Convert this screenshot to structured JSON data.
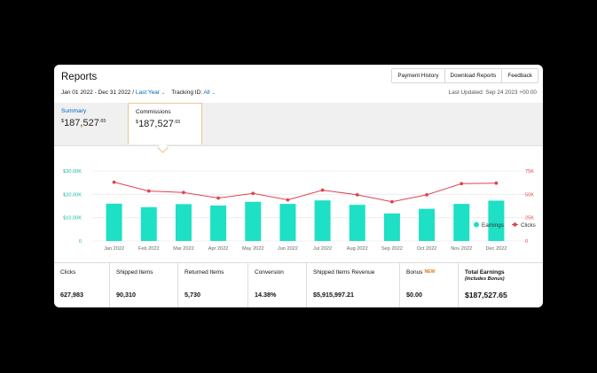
{
  "header": {
    "title": "Reports",
    "buttons": [
      "Payment History",
      "Download Reports",
      "Feedback"
    ]
  },
  "filters": {
    "date_range": "Jan 01 2022 - Dec 31 2022",
    "separator": "/",
    "period": "Last Year",
    "tracking_label": "Tracking ID:",
    "tracking_value": "All",
    "last_updated": "Last Updated: Sep 24 2023 +00:00"
  },
  "tabs": {
    "summary": {
      "label": "Summary",
      "currency": "$",
      "amount": "187,527",
      "cents": ".65"
    },
    "commissions": {
      "label": "Commissions",
      "currency": "$",
      "amount": "187,527",
      "cents": ".65"
    }
  },
  "chart_data": {
    "type": "bar",
    "categories": [
      "Jan 2022",
      "Feb 2022",
      "Mar 2022",
      "Apr 2022",
      "May 2022",
      "Jun 2022",
      "Jul 2022",
      "Aug 2022",
      "Sep 2022",
      "Oct 2022",
      "Nov 2022",
      "Dec 2022"
    ],
    "series": [
      {
        "name": "Earnings",
        "type": "bar",
        "axis": "left",
        "color": "#1de0c5",
        "values": [
          16000,
          14500,
          15800,
          15200,
          16800,
          15900,
          17400,
          15500,
          11800,
          13800,
          15900,
          17300
        ]
      },
      {
        "name": "Clicks",
        "type": "line",
        "axis": "right",
        "color": "#e0434f",
        "values": [
          63000,
          53500,
          52000,
          46000,
          51000,
          44000,
          54500,
          49500,
          42000,
          49500,
          61500,
          62000
        ]
      }
    ],
    "y_left": {
      "ticks": [
        "$30.00K",
        "$20.00K",
        "$10.00K",
        "0"
      ],
      "range": [
        0,
        30000
      ]
    },
    "y_right": {
      "ticks": [
        "75K",
        "50K",
        "25K",
        "0"
      ],
      "range": [
        0,
        75000
      ]
    },
    "grid": true,
    "legend_position": "top-right"
  },
  "stats": [
    {
      "label": "Clicks",
      "value": "627,983"
    },
    {
      "label": "Shipped Items",
      "value": "90,310"
    },
    {
      "label": "Returned Items",
      "value": "5,730"
    },
    {
      "label": "Conversion",
      "value": "14.38%"
    },
    {
      "label": "Shipped Items Revenue",
      "value": "$5,915,997.21"
    },
    {
      "label": "Bonus",
      "badge": "NEW",
      "value": "$0.00"
    },
    {
      "label": "Total Earnings",
      "sublabel": "(Includes Bonus)",
      "value": "$187,527.65"
    }
  ]
}
